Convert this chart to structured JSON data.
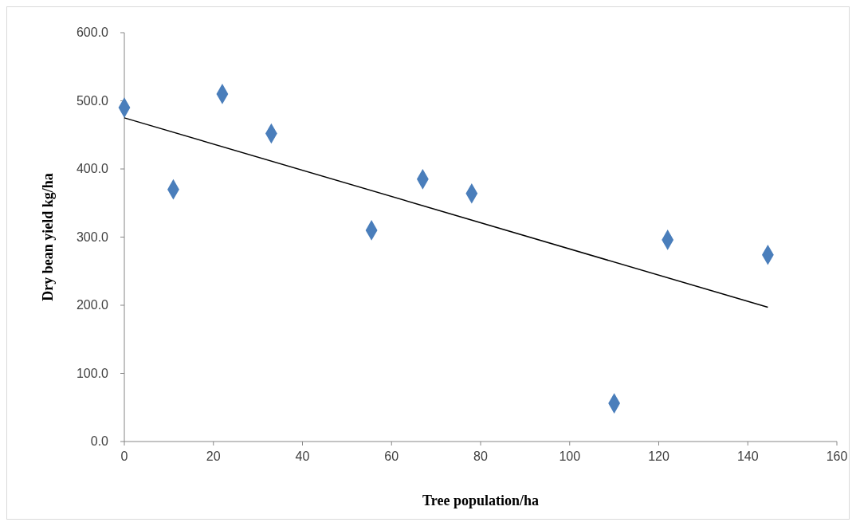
{
  "chart_data": {
    "type": "scatter",
    "xlabel": "Tree population/ha",
    "ylabel": "Dry bean yield kg/ha",
    "xlim": [
      0,
      160
    ],
    "xticks": [
      0,
      20,
      40,
      60,
      80,
      100,
      120,
      140,
      160
    ],
    "ylim": [
      0,
      600
    ],
    "yticks": [
      {
        "value": 0,
        "label": "0.0"
      },
      {
        "value": 100,
        "label": "100.0"
      },
      {
        "value": 200,
        "label": "200.0"
      },
      {
        "value": 300,
        "label": "300.0"
      },
      {
        "value": 400,
        "label": "400.0"
      },
      {
        "value": 500,
        "label": "500.0"
      },
      {
        "value": 600,
        "label": "600.0"
      }
    ],
    "grid": false,
    "marker": "diamond",
    "series": [
      {
        "type": "scatter",
        "color": "#4a7ebb",
        "x": [
          0,
          11,
          22,
          33,
          55.5,
          67,
          78,
          110,
          122,
          144.5
        ],
        "values": [
          490,
          370,
          510,
          452,
          310,
          385,
          364,
          56,
          296,
          274
        ]
      },
      {
        "type": "line",
        "color": "#000000",
        "marker": "none",
        "line_style": "solid",
        "x": [
          0,
          144.5
        ],
        "values": [
          475,
          197
        ]
      }
    ]
  }
}
